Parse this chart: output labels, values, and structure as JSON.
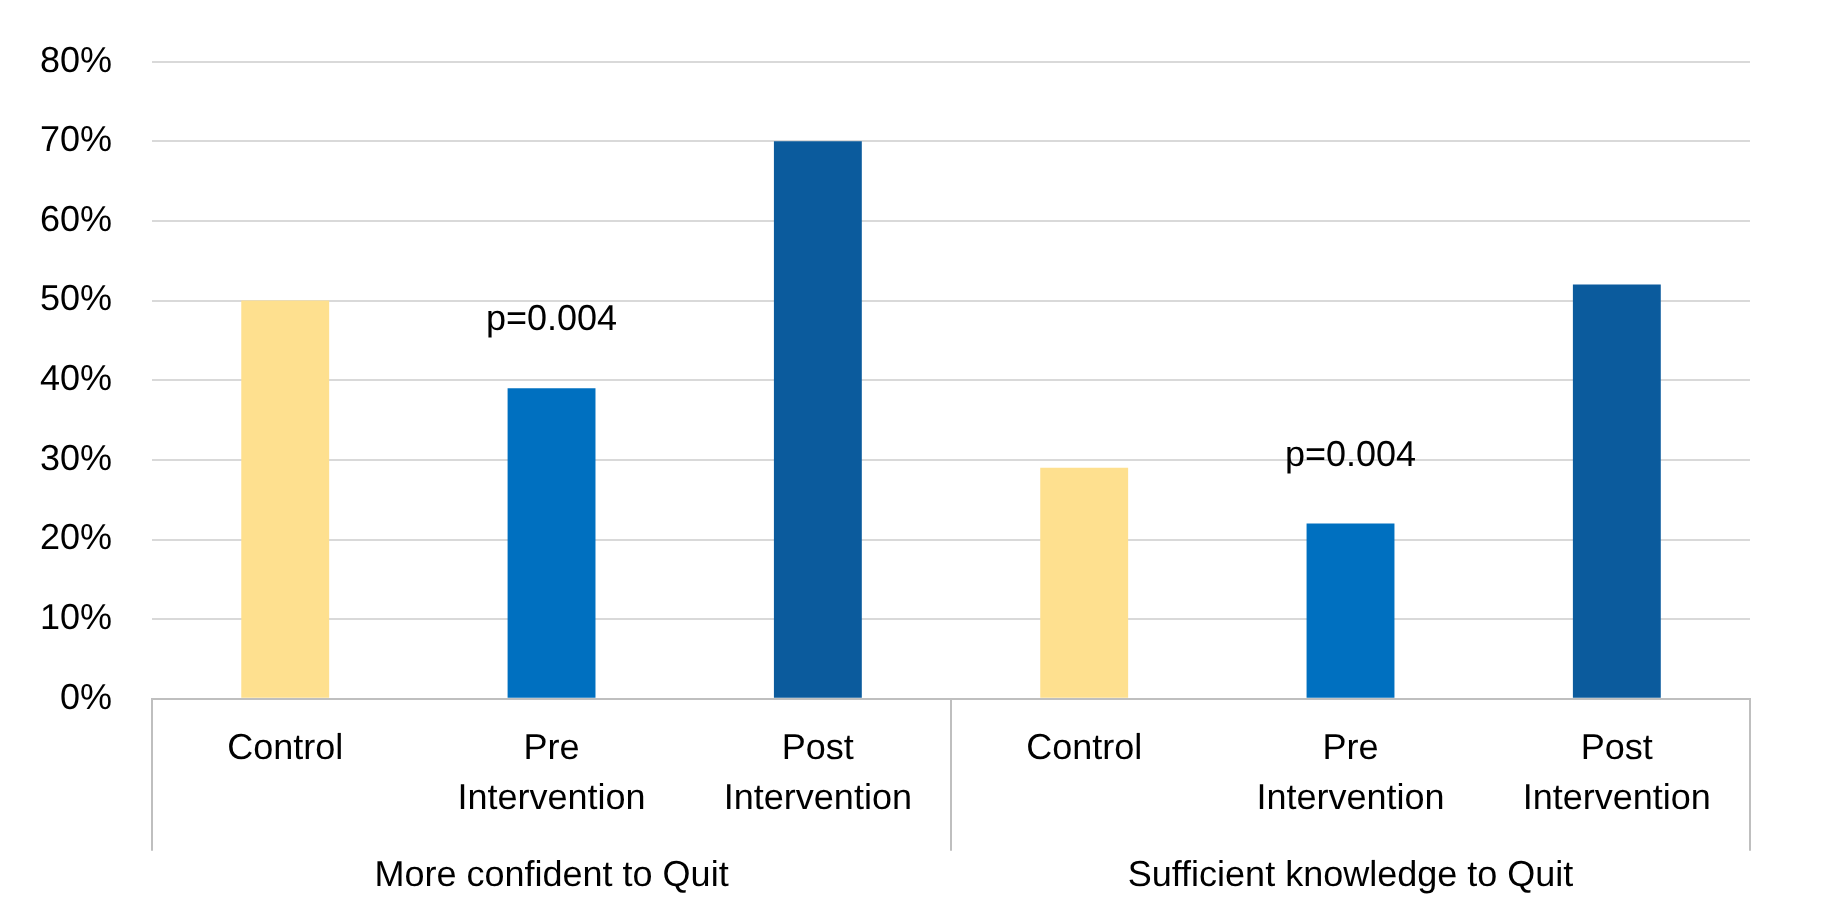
{
  "chart_data": {
    "type": "bar",
    "categories": [
      "More confident to Quit",
      "Sufficient knowledge to Quit"
    ],
    "series": [
      {
        "name": "Control",
        "color": "#fee08f",
        "values": [
          50,
          29
        ]
      },
      {
        "name": "Pre Intervention",
        "color": "#0070c0",
        "values": [
          39,
          22
        ]
      },
      {
        "name": "Post Intervention",
        "color": "#0b5b9d",
        "values": [
          70,
          52
        ]
      }
    ],
    "ylim": [
      0,
      80
    ],
    "yticks": [
      {
        "value": 0,
        "label": "0%"
      },
      {
        "value": 10,
        "label": "10%"
      },
      {
        "value": 20,
        "label": "20%"
      },
      {
        "value": 30,
        "label": "30%"
      },
      {
        "value": 40,
        "label": "40%"
      },
      {
        "value": 50,
        "label": "50%"
      },
      {
        "value": 60,
        "label": "60%"
      },
      {
        "value": 70,
        "label": "70%"
      },
      {
        "value": 80,
        "label": "80%"
      }
    ],
    "annotations": [
      "p=0.004",
      "p=0.004"
    ],
    "grid": "y",
    "legend": false
  }
}
